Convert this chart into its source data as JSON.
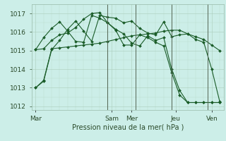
{
  "background_color": "#cceee8",
  "grid_color_major": "#aaccbb",
  "grid_color_minor": "#bbddcc",
  "line_color": "#1a5c28",
  "ylim": [
    1011.8,
    1017.5
  ],
  "yticks": [
    1012,
    1013,
    1014,
    1015,
    1016,
    1017
  ],
  "xlabel": "Pression niveau de la mer( hPa )",
  "day_labels": [
    "Mar",
    "Sam",
    "Mer",
    "Jeu",
    "Ven"
  ],
  "day_x": [
    0,
    9.5,
    12,
    17.5,
    22
  ],
  "vline_x": [
    9.0,
    12.5,
    17.0,
    21.5
  ],
  "n_points": 24,
  "series": [
    [
      1013.0,
      1013.4,
      1015.1,
      1015.15,
      1015.2,
      1015.25,
      1015.3,
      1015.35,
      1015.4,
      1015.5,
      1015.6,
      1015.7,
      1015.8,
      1015.85,
      1015.9,
      1015.95,
      1016.05,
      1016.1,
      1016.1,
      1015.9,
      1015.75,
      1015.6,
      1015.3,
      1015.0
    ],
    [
      1015.05,
      1015.7,
      1016.2,
      1016.55,
      1016.05,
      1015.5,
      1015.45,
      1016.9,
      1016.75,
      1016.5,
      1016.15,
      1015.9,
      1015.4,
      1015.25,
      1015.8,
      1015.55,
      1015.7,
      1014.0,
      1012.85,
      1012.2,
      1012.2,
      1012.2,
      1012.2,
      1012.2
    ],
    [
      1015.05,
      1015.1,
      1015.55,
      1015.85,
      1015.95,
      1016.25,
      1016.7,
      1017.0,
      1017.05,
      1016.5,
      1016.1,
      1015.3,
      1015.3,
      1015.85,
      1015.7,
      1015.45,
      1015.25,
      1013.8,
      1012.6,
      1012.2,
      1012.2,
      1012.2,
      1012.2,
      1012.2
    ],
    [
      1013.0,
      1013.35,
      1015.05,
      1015.55,
      1016.15,
      1016.6,
      1016.05,
      1015.5,
      1016.9,
      1016.8,
      1016.75,
      1016.5,
      1016.6,
      1016.2,
      1015.95,
      1015.85,
      1016.55,
      1015.75,
      1015.85,
      1015.9,
      1015.6,
      1015.45,
      1014.0,
      1012.25
    ]
  ],
  "marker_size": 2.0,
  "line_width": 0.8,
  "figsize": [
    3.2,
    2.0
  ],
  "dpi": 100
}
